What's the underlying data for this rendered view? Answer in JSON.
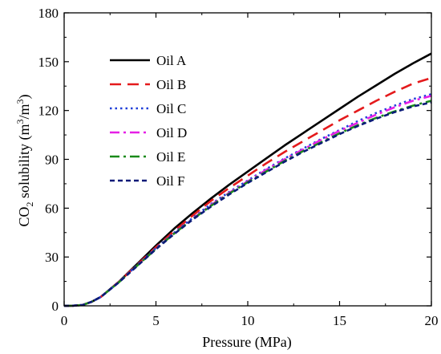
{
  "chart_data": {
    "type": "line",
    "xlabel": "Pressure (MPa)",
    "ylabel": "CO2 solubility (m3/m3)",
    "ylabel_parts": {
      "a": "CO",
      "b": "2",
      "c": " solubility (m",
      "d": "3",
      "e": "/m",
      "f": "3",
      "g": ")"
    },
    "xlim": [
      0,
      20
    ],
    "ylim": [
      0,
      180
    ],
    "xticks": [
      0,
      5,
      10,
      15,
      20
    ],
    "yticks": [
      0,
      30,
      60,
      90,
      120,
      150,
      180
    ],
    "xtick_labels": [
      "0",
      "5",
      "10",
      "15",
      "20"
    ],
    "ytick_labels": [
      "0",
      "30",
      "60",
      "90",
      "120",
      "150",
      "180"
    ],
    "grid": false,
    "legend_position": "top-left",
    "x": [
      0,
      0.5,
      1,
      1.5,
      2,
      3,
      4,
      5,
      6,
      7,
      8,
      9,
      10,
      11,
      12,
      13,
      14,
      15,
      16,
      17,
      18,
      19,
      20
    ],
    "series": [
      {
        "name": "Oil A",
        "color": "#000000",
        "dash": "solid",
        "values": [
          0,
          0.1,
          0.5,
          2.5,
          5.5,
          15,
          26,
          37,
          47.5,
          57,
          66,
          74.5,
          82.5,
          90.5,
          98.5,
          106,
          113.5,
          121,
          128.5,
          135.5,
          142.5,
          149,
          155
        ]
      },
      {
        "name": "Oil B",
        "color": "#e41a1c",
        "dash": "dashed",
        "values": [
          0,
          0.1,
          0.5,
          2.5,
          5.5,
          15,
          25.5,
          36,
          46,
          55.5,
          64.5,
          72.5,
          80,
          87.5,
          94.5,
          101,
          107.5,
          114,
          120,
          126,
          131.5,
          136.5,
          140
        ]
      },
      {
        "name": "Oil C",
        "color": "#1f3fd8",
        "dash": "dotted",
        "values": [
          0,
          0.1,
          0.5,
          2.5,
          5.5,
          14.8,
          25.2,
          35.5,
          45,
          54,
          62.5,
          70,
          77,
          84,
          90.5,
          96.5,
          102.5,
          108,
          113.5,
          118.5,
          123,
          127,
          130
        ]
      },
      {
        "name": "Oil D",
        "color": "#e620e6",
        "dash": "dashdot",
        "values": [
          0,
          0.1,
          0.5,
          2.5,
          5.5,
          14.8,
          25,
          35.2,
          44.7,
          53.5,
          62,
          69.5,
          76.5,
          83.5,
          90,
          96,
          102,
          107.5,
          112.5,
          117.5,
          122,
          126,
          129
        ]
      },
      {
        "name": "Oil E",
        "color": "#1a8a1a",
        "dash": "dashdot",
        "values": [
          0,
          0.1,
          0.5,
          2.5,
          5.5,
          14.7,
          24.9,
          35,
          44.5,
          53.2,
          61.5,
          69,
          76,
          82.5,
          89,
          95,
          100.5,
          106,
          111,
          115.5,
          119.5,
          123,
          126
        ]
      },
      {
        "name": "Oil F",
        "color": "#0b1a78",
        "dash": "shortdash",
        "values": [
          0,
          0.1,
          0.5,
          2.5,
          5.5,
          14.6,
          24.7,
          34.8,
          44.2,
          53,
          61,
          68.5,
          75.5,
          82,
          88.5,
          94.5,
          100,
          105.5,
          110.5,
          115,
          119,
          122.5,
          125
        ]
      }
    ]
  }
}
